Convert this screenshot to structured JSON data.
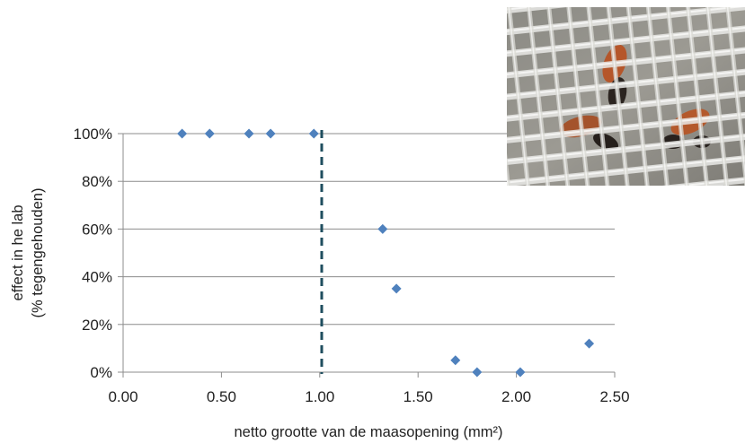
{
  "chart_data": {
    "type": "scatter",
    "title": "",
    "xlabel": "netto grootte van de maasopening (mm²)",
    "ylabel_lines": [
      "effect in he lab",
      "(% tegengehouden)"
    ],
    "xlim": [
      0,
      2.5
    ],
    "ylim": [
      0,
      100
    ],
    "x_ticks": [
      "0.00",
      "0.50",
      "1.00",
      "1.50",
      "2.00",
      "2.50"
    ],
    "x_tick_values": [
      0,
      0.5,
      1.0,
      1.5,
      2.0,
      2.5
    ],
    "y_ticks": [
      "0%",
      "20%",
      "40%",
      "60%",
      "80%",
      "100%"
    ],
    "y_tick_values": [
      0,
      20,
      40,
      60,
      80,
      100
    ],
    "grid": "horizontal",
    "marker": "diamond",
    "marker_color": "#4f81bd",
    "reference_line": {
      "x": 1.01,
      "style": "dashed",
      "color": "#1f4e5f"
    },
    "points": [
      {
        "x": 0.3,
        "y": 100
      },
      {
        "x": 0.44,
        "y": 100
      },
      {
        "x": 0.64,
        "y": 100
      },
      {
        "x": 0.75,
        "y": 100
      },
      {
        "x": 0.97,
        "y": 100
      },
      {
        "x": 1.32,
        "y": 60
      },
      {
        "x": 1.39,
        "y": 35
      },
      {
        "x": 1.69,
        "y": 5
      },
      {
        "x": 1.8,
        "y": 0
      },
      {
        "x": 2.02,
        "y": 0
      },
      {
        "x": 2.37,
        "y": 12
      }
    ]
  },
  "inset_photo": {
    "subject": "insects-behind-mesh-netting"
  }
}
